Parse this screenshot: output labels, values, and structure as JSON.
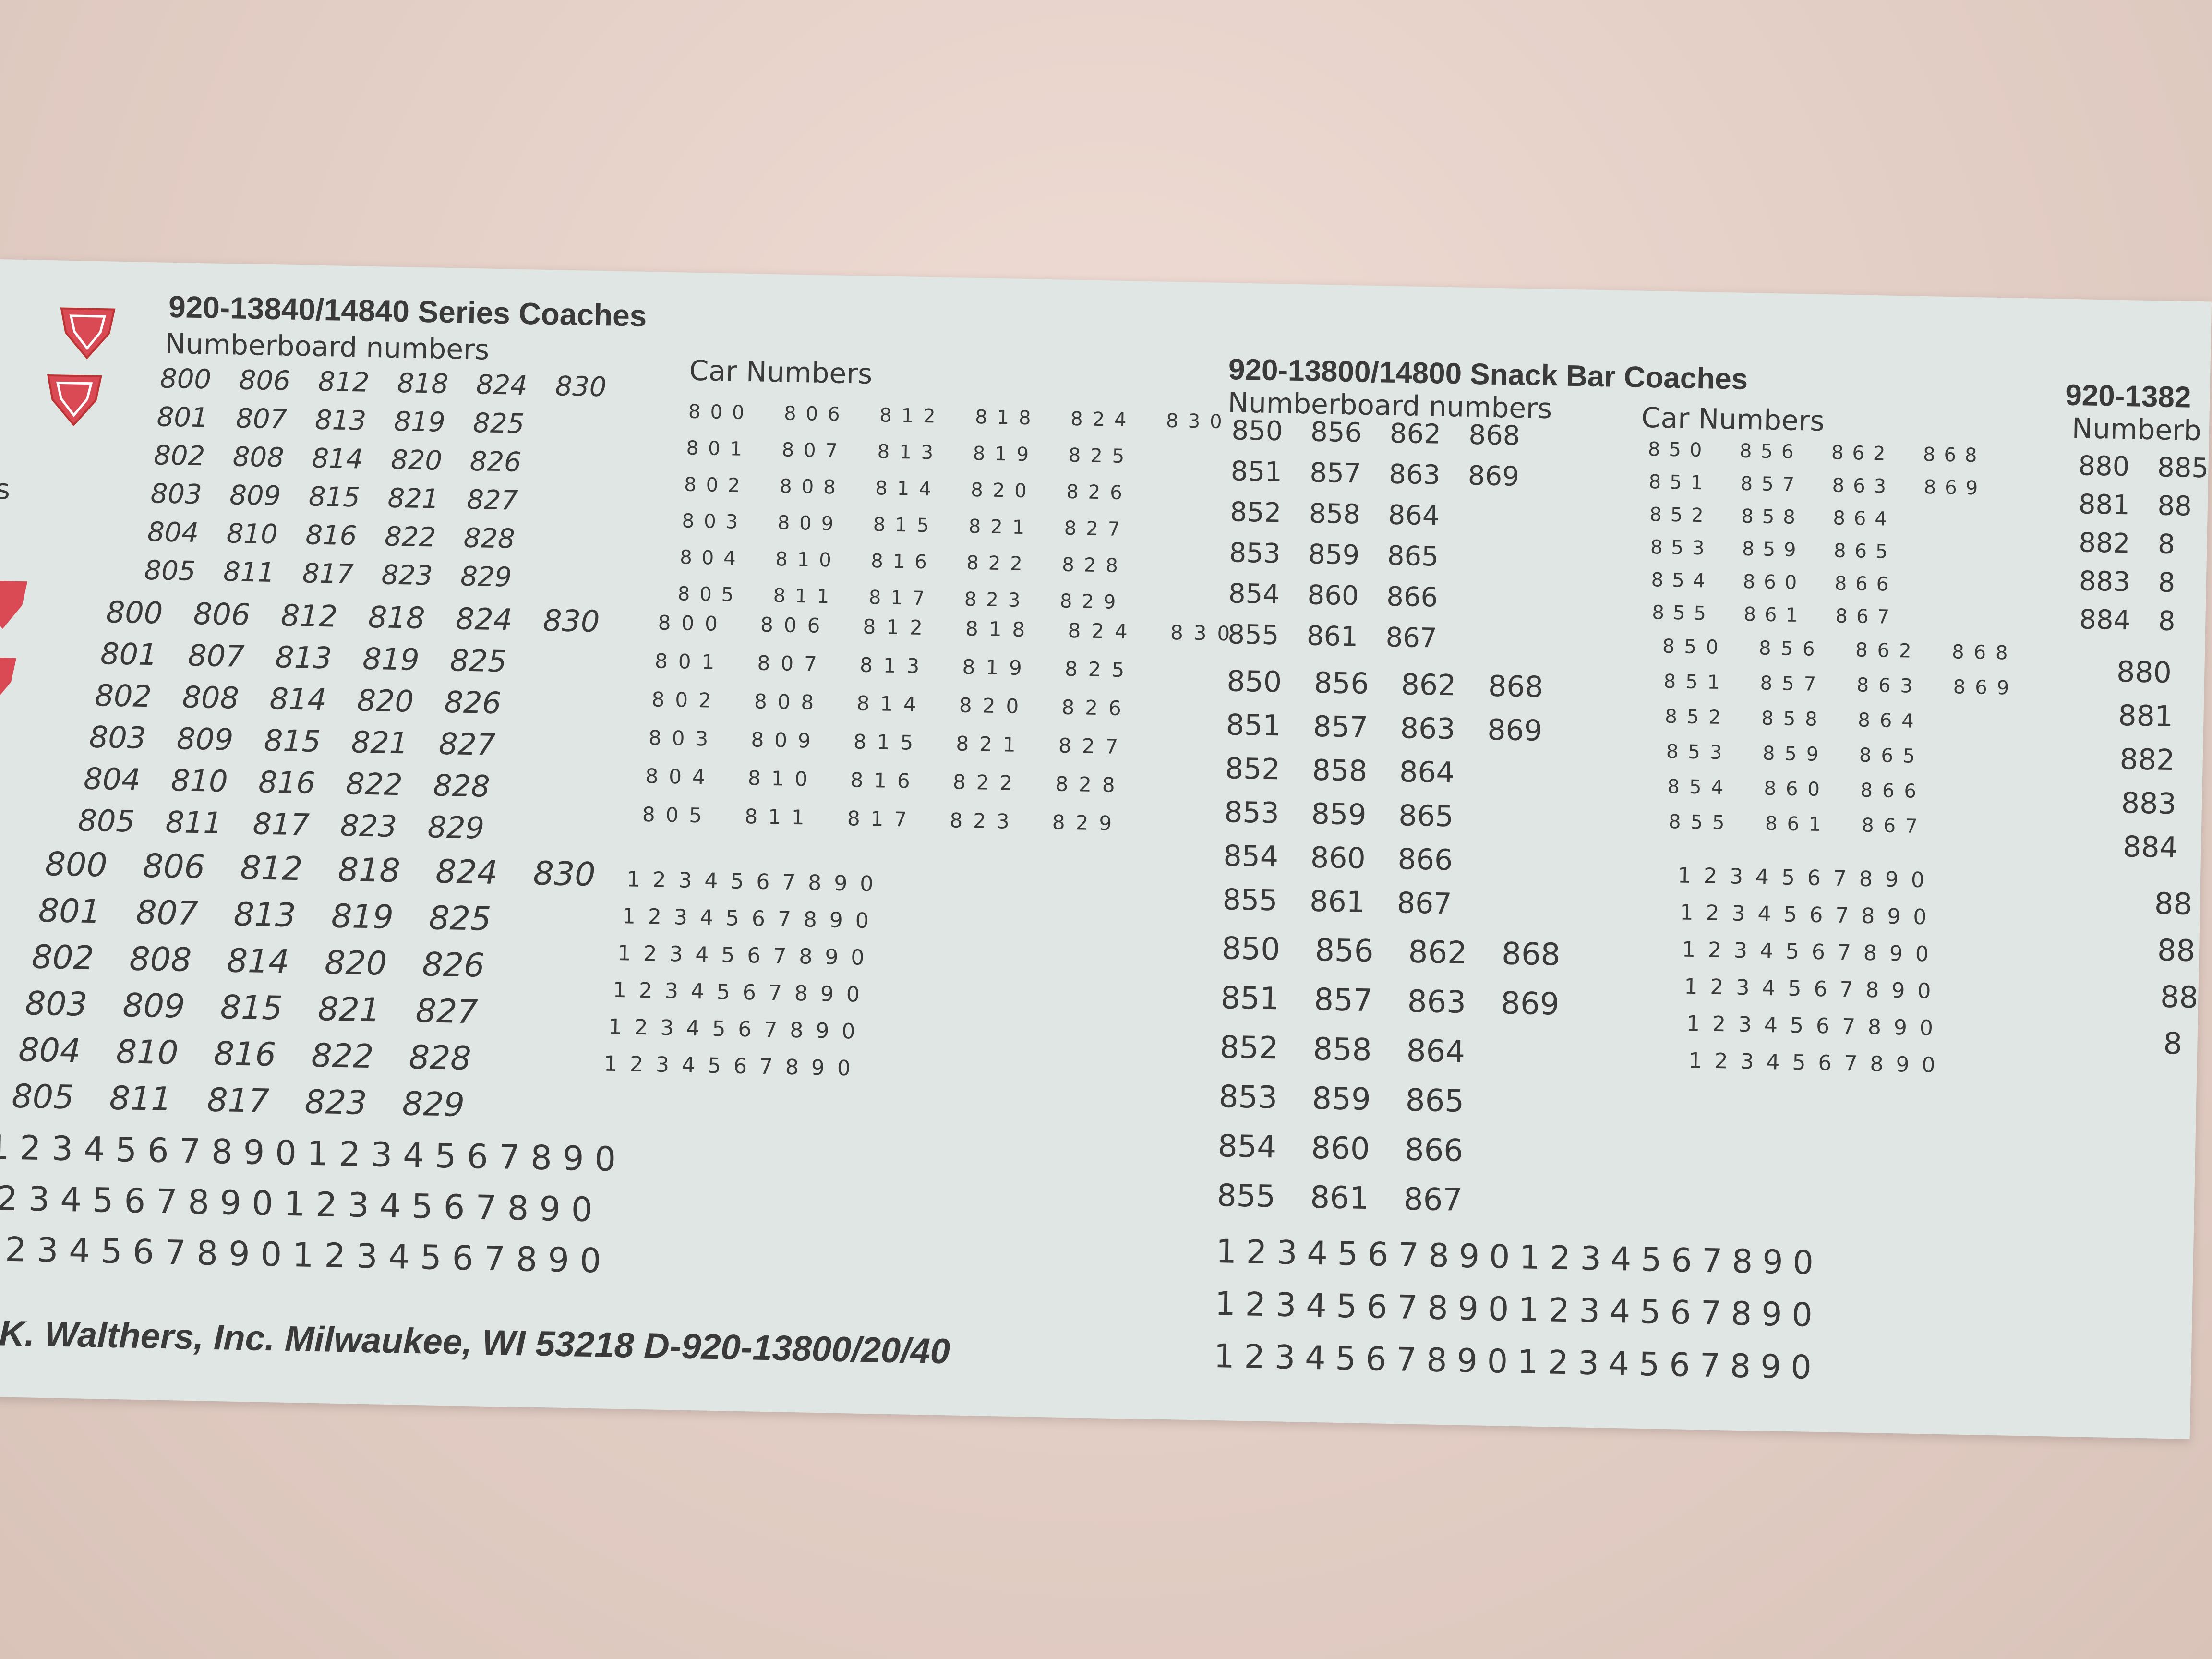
{
  "left_edge_text": "s",
  "left_section": {
    "title": "920-13840/14840 Series Coaches",
    "numberboard_label": "Numberboard numbers",
    "car_numbers_label": "Car Numbers",
    "numberboard_blocks": [
      [
        "800 806 812 818 824 830",
        "801 807 813 819 825",
        "802 808 814 820 826",
        "803 809 815 821 827",
        "804 810 816 822 828",
        "805 811 817 823 829"
      ],
      [
        "800 806 812 818 824 830",
        "801 807 813 819 825",
        "802 808 814 820 826",
        "803 809 815 821 827",
        "804 810 816 822 828",
        "805 811 817 823 829"
      ],
      [
        "800 806 812 818 824 830",
        "801 807 813 819 825",
        "802 808 814 820 826",
        "803 809 815 821 827",
        "804 810 816 822 828",
        "805 811 817 823 829"
      ]
    ],
    "car_number_blocks": [
      [
        "800 806 812 818 824 830",
        "801 807 813 819 825",
        "802 808 814 820 826",
        "803 809 815 821 827",
        "804 810 816 822 828",
        "805 811 817 823 829"
      ],
      [
        "800 806 812 818 824 830",
        "801 807 813 819 825",
        "802 808 814 820 826",
        "803 809 815 821 827",
        "804 810 816 822 828",
        "805 811 817 823 829"
      ]
    ],
    "digit_rows": [
      "1234567890",
      "1234567890",
      "1234567890",
      "1234567890",
      "1234567890",
      "1234567890"
    ],
    "large_digit_rows": [
      "12345678901234567890",
      "2345678901234567890",
      "2345678901234567890"
    ]
  },
  "middle_section": {
    "title": "920-13800/14800 Snack Bar Coaches",
    "numberboard_label": "Numberboard numbers",
    "car_numbers_label": "Car Numbers",
    "numberboard_blocks": [
      [
        "850 856 862 868",
        "851 857 863 869",
        "852 858 864",
        "853 859 865",
        "854 860 866",
        "855 861 867"
      ],
      [
        "850 856 862 868",
        "851 857 863 869",
        "852 858 864",
        "853 859 865",
        "854 860 866",
        "855 861 867"
      ],
      [
        "850 856 862 868",
        "851 857 863 869",
        "852 858 864",
        "853 859 865",
        "854 860 866",
        "855 861 867"
      ]
    ],
    "car_number_blocks": [
      [
        "850 856 862 868",
        "851 857 863 869",
        "852 858 864",
        "853 859 865",
        "854 860 866",
        "855 861 867"
      ],
      [
        "850 856 862 868",
        "851 857 863 869",
        "852 858 864",
        "853 859 865",
        "854 860 866",
        "855 861 867"
      ]
    ],
    "digit_rows": [
      "1234567890",
      "1234567890",
      "1234567890",
      "1234567890",
      "1234567890",
      "1234567890"
    ],
    "large_digit_rows": [
      "12345678901234567890",
      "12345678901234567890",
      "12345678901234567890"
    ]
  },
  "right_section": {
    "title": "920-1382",
    "numberboard_label": "Numberb",
    "numberboard_blocks": [
      [
        "880 885",
        "881 88",
        "882 8",
        "883 8",
        "884 8"
      ],
      [
        "880",
        "881",
        "882",
        "883",
        "884"
      ],
      [
        "88",
        "88",
        "88",
        "8"
      ]
    ]
  },
  "footer": ". K. Walthers, Inc. Milwaukee, WI 53218 D-920-13800/20/40"
}
